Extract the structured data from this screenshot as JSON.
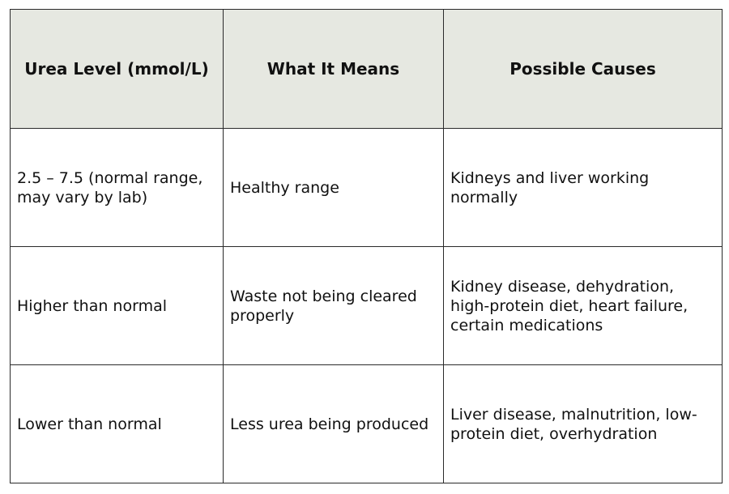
{
  "table": {
    "headers": [
      "Urea Level (mmol/L)",
      "What It Means",
      "Possible Causes"
    ],
    "rows": [
      [
        "2.5 – 7.5 (normal range, may vary by lab)",
        "Healthy range",
        "Kidneys and liver working normally"
      ],
      [
        "Higher than normal",
        "Waste not being cleared properly",
        "Kidney disease, dehydration, high-protein diet, heart failure, certain medications"
      ],
      [
        "Lower than normal",
        "Less urea being produced",
        "Liver disease, malnutrition, low-protein diet, overhydration"
      ]
    ]
  },
  "colors": {
    "header_background": "#e6e8e1",
    "border": "#2a2a2a",
    "text": "#111111"
  }
}
